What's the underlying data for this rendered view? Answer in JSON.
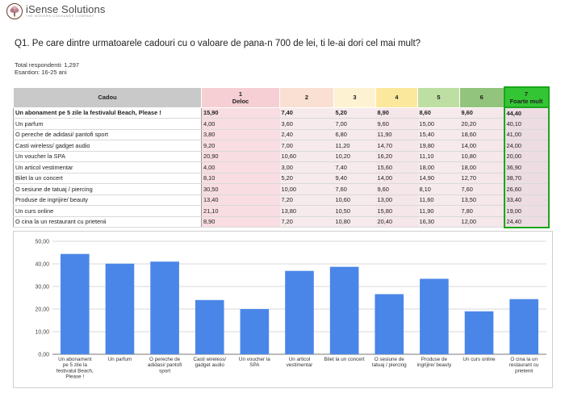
{
  "logo": {
    "brand": "iSense Solutions",
    "tagline": "THE MODERN CONSUMER COMPANY"
  },
  "title": "Q1. Pe care dintre urmatoarele cadouri cu o valoare de pana-n 700 de lei, ti le-ai dori cel mai mult?",
  "respondents": "Total respondenti: 1,297",
  "sample": "Esantion: 16-25 ani",
  "colors": {
    "header_label": "#c9c9c9",
    "header_cols": [
      "#f5cfd4",
      "#fadfd3",
      "#fdf3d3",
      "#fbe89c",
      "#bedfa3",
      "#93c47d",
      "#34c534"
    ],
    "value_cells": [
      "#f8dde2",
      "#f6eaec",
      "#f6eaec",
      "#f5e6e9",
      "#f6eaec",
      "#f5e7ea",
      "#eddde3"
    ],
    "bar": "#4a86e8"
  },
  "table": {
    "label_header": "Cadou",
    "col_headers": [
      {
        "num": "1",
        "sub": "Deloc"
      },
      {
        "num": "2",
        "sub": ""
      },
      {
        "num": "3",
        "sub": ""
      },
      {
        "num": "4",
        "sub": ""
      },
      {
        "num": "5",
        "sub": ""
      },
      {
        "num": "6",
        "sub": ""
      },
      {
        "num": "7",
        "sub": "Foarte mult"
      }
    ],
    "rows": [
      {
        "label": "Un abonament pe 5 zile la festivalul Beach, Please !",
        "values": [
          "15,90",
          "7,40",
          "5,20",
          "8,90",
          "8,60",
          "9,60",
          "44,40"
        ]
      },
      {
        "label": "Un parfum",
        "values": [
          "4,00",
          "3,60",
          "7,00",
          "9,60",
          "15,00",
          "20,20",
          "40,10"
        ]
      },
      {
        "label": "O pereche de adidasi/ pantofi sport",
        "values": [
          "3,80",
          "2,40",
          "6,80",
          "11,90",
          "15,40",
          "18,60",
          "41,00"
        ]
      },
      {
        "label": "Casti wireless/ gadget audio",
        "values": [
          "9,20",
          "7,00",
          "11,20",
          "14,70",
          "19,80",
          "14,00",
          "24,00"
        ]
      },
      {
        "label": "Un voucher la SPA",
        "values": [
          "20,90",
          "10,60",
          "10,20",
          "16,20",
          "11,10",
          "10,80",
          "20,00"
        ]
      },
      {
        "label": "Un articol vestimentar",
        "values": [
          "4,00",
          "3,00",
          "7,40",
          "15,60",
          "18,00",
          "18,00",
          "36,90"
        ]
      },
      {
        "label": "Bilet la un concert",
        "values": [
          "8,10",
          "5,20",
          "9,40",
          "14,00",
          "14,90",
          "12,70",
          "38,70"
        ]
      },
      {
        "label": "O sesiune de tatuaj / piercing",
        "values": [
          "30,50",
          "10,00",
          "7,60",
          "9,60",
          "8,10",
          "7,60",
          "26,60"
        ]
      },
      {
        "label": "Produse de ingrijire/ beauty",
        "values": [
          "13,40",
          "7,20",
          "10,60",
          "13,00",
          "11,60",
          "13,50",
          "33,40"
        ]
      },
      {
        "label": "Un curs online",
        "values": [
          "21,10",
          "13,80",
          "10,50",
          "15,80",
          "11,90",
          "7,80",
          "19,00"
        ]
      },
      {
        "label": "O cina la un restaurant cu prietenii",
        "values": [
          "8,90",
          "7,20",
          "10,80",
          "20,40",
          "16,30",
          "12,00",
          "24,40"
        ]
      }
    ]
  },
  "chart_data": {
    "type": "bar",
    "title": "",
    "xlabel": "",
    "ylabel": "",
    "ylim": [
      0,
      50
    ],
    "yticks": [
      "0,00",
      "10,00",
      "20,00",
      "30,00",
      "40,00",
      "50,00"
    ],
    "categories": [
      [
        "Un abonament",
        "pe 5 zile la",
        "festivalul Beach,",
        "Please !"
      ],
      [
        "Un parfum"
      ],
      [
        "O pereche de",
        "adidasi/ pantofi",
        "sport"
      ],
      [
        "Casti wireless/",
        "gadget audio"
      ],
      [
        "Un voucher la",
        "SPA"
      ],
      [
        "Un articol",
        "vestimentar"
      ],
      [
        "Bilet la un concert"
      ],
      [
        "O sesiune de",
        "tatuaj / piercing"
      ],
      [
        "Produse de",
        "ingrijire/ beauty"
      ],
      [
        "Un curs online"
      ],
      [
        "O cina la un",
        "restaurant cu",
        "prietenii"
      ]
    ],
    "values": [
      44.4,
      40.1,
      41.0,
      24.0,
      20.0,
      36.9,
      38.7,
      26.6,
      33.4,
      19.0,
      24.4
    ]
  }
}
